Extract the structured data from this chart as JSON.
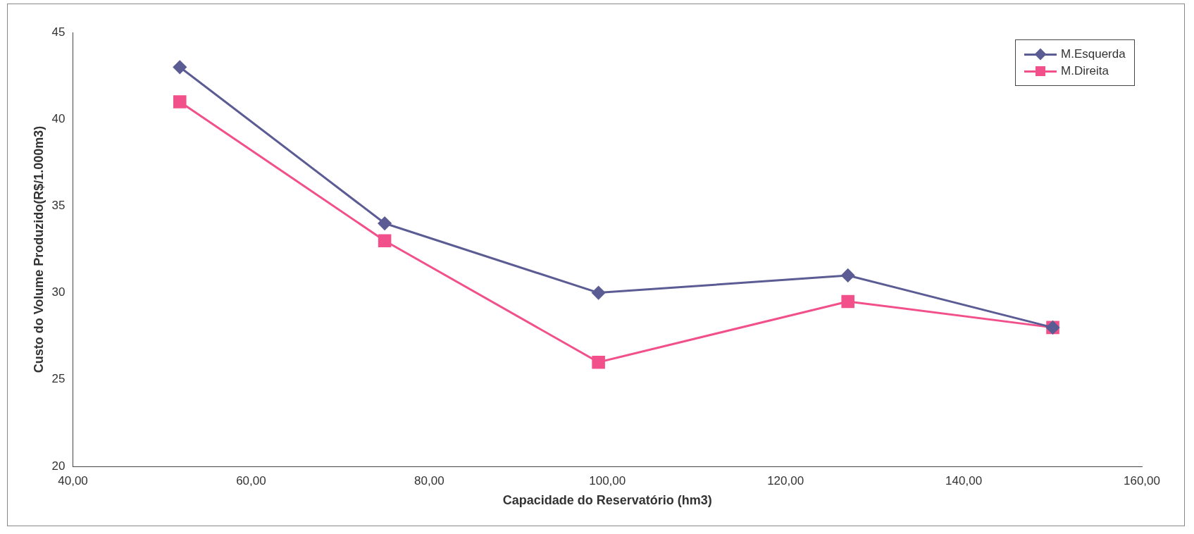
{
  "chart_data": {
    "type": "line",
    "xlabel": "Capacidade do Reservatório (hm3)",
    "ylabel": "Custo do Volume Produzido(R$/1.000m3)",
    "x": [
      52,
      75,
      99,
      127,
      150
    ],
    "series": [
      {
        "name": "M.Esquerda",
        "color": "#5c5c94",
        "marker": "diamond",
        "values": [
          43,
          34,
          30,
          31,
          28
        ]
      },
      {
        "name": "M.Direita",
        "color": "#f2508a",
        "marker": "square",
        "values": [
          41,
          33,
          26,
          29.5,
          28
        ]
      }
    ],
    "xlim": [
      40,
      160
    ],
    "xticks": [
      {
        "value": 40,
        "label": "40,00"
      },
      {
        "value": 60,
        "label": "60,00"
      },
      {
        "value": 80,
        "label": "80,00"
      },
      {
        "value": 100,
        "label": "100,00"
      },
      {
        "value": 120,
        "label": "120,00"
      },
      {
        "value": 140,
        "label": "140,00"
      },
      {
        "value": 160,
        "label": "160,00"
      }
    ],
    "ylim": [
      20,
      45
    ],
    "yticks": [
      20,
      25,
      30,
      35,
      40,
      45
    ],
    "grid": false,
    "legend": "top right"
  }
}
